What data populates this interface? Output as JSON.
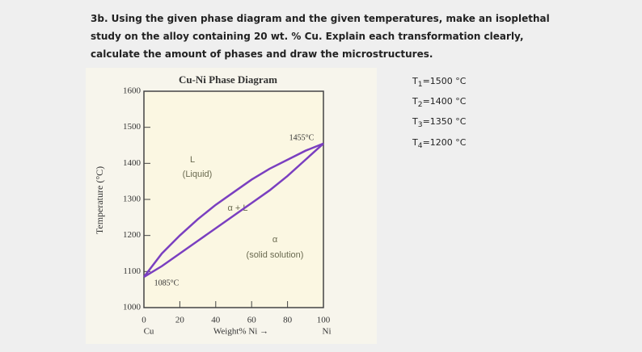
{
  "question": "3b. Using the given phase diagram and the given temperatures, make an isoplethal study on the alloy containing 20 wt. % Cu. Explain each transformation clearly, calculate the amount of phases and draw the microstructures.",
  "temperatures": [
    {
      "symbol": "T",
      "index": "1",
      "text": "=1500 °C"
    },
    {
      "symbol": "T",
      "index": "2",
      "text": "=1400 °C"
    },
    {
      "symbol": "T",
      "index": "3",
      "text": "=1350 °C"
    },
    {
      "symbol": "T",
      "index": "4",
      "text": "=1200 °C"
    }
  ],
  "chart_data": {
    "type": "line",
    "title": "Cu-Ni Phase Diagram",
    "xlabel": "Weight% Ni →",
    "ylabel": "Temperature (°C)",
    "x_left_element": "Cu",
    "x_right_element": "Ni",
    "x": [
      0,
      10,
      20,
      30,
      40,
      50,
      60,
      70,
      80,
      90,
      100
    ],
    "series": [
      {
        "color": "#7a3fc0",
        "values": [
          1085,
          1150,
          1200,
          1245,
          1285,
          1320,
          1355,
          1385,
          1410,
          1435,
          1455
        ]
      },
      {
        "color": "#7a3fc0",
        "values": [
          1085,
          1115,
          1150,
          1185,
          1220,
          1255,
          1290,
          1325,
          1365,
          1410,
          1455
        ]
      }
    ],
    "xlim": [
      0,
      100
    ],
    "xticks": [
      0,
      20,
      40,
      60,
      80,
      100
    ],
    "ylim": [
      1000,
      1600
    ],
    "yticks": [
      1000,
      1100,
      1200,
      1300,
      1400,
      1500,
      1600
    ],
    "annotations": {
      "liquid_symbol": "L",
      "liquid": "(Liquid)",
      "two_phase": "α + L",
      "alpha": "α",
      "solid": "(solid solution)",
      "ni_melt": "1455°C",
      "cu_melt": "1085°C"
    }
  }
}
